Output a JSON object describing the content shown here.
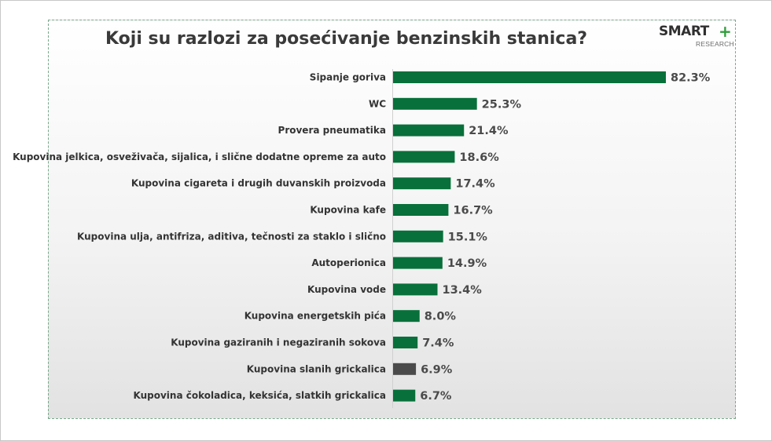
{
  "logo": {
    "name": "SMART",
    "plus": "+",
    "subtitle": "RESEARCH",
    "accent_color": "#2e9e3a"
  },
  "chart_data": {
    "type": "bar",
    "orientation": "horizontal",
    "title": "Koji su razlozi za posećivanje benzinskih stanica?",
    "categories": [
      "Sipanje goriva",
      "WC",
      "Provera pneumatika",
      "Kupovina jelkica, osveživača, sijalica, i slične dodatne opreme za auto",
      "Kupovina cigareta i drugih duvanskih proizvoda",
      "Kupovina kafe",
      "Kupovina ulja, antifriza, aditiva, tečnosti za staklo i slično",
      "Autoperionica",
      "Kupovina vode",
      "Kupovina energetskih pića",
      "Kupovina gaziranih i negaziranih sokova",
      "Kupovina slanih grickalica",
      "Kupovina čokoladica, keksića, slatkih grickalica"
    ],
    "values": [
      82.3,
      25.3,
      21.4,
      18.6,
      17.4,
      16.7,
      15.1,
      14.9,
      13.4,
      8.0,
      7.4,
      6.9,
      6.7
    ],
    "value_labels": [
      "82.3%",
      "25.3%",
      "21.4%",
      "18.6%",
      "17.4%",
      "16.7%",
      "15.1%",
      "14.9%",
      "13.4%",
      "8.0%",
      "7.4%",
      "6.9%",
      "6.7%"
    ],
    "bar_colors": [
      "#08703a",
      "#08703a",
      "#08703a",
      "#08703a",
      "#08703a",
      "#08703a",
      "#08703a",
      "#08703a",
      "#08703a",
      "#08703a",
      "#08703a",
      "#4a4a4a",
      "#08703a"
    ],
    "xlim": [
      0,
      82.3
    ],
    "grid": false,
    "legend": "none"
  }
}
